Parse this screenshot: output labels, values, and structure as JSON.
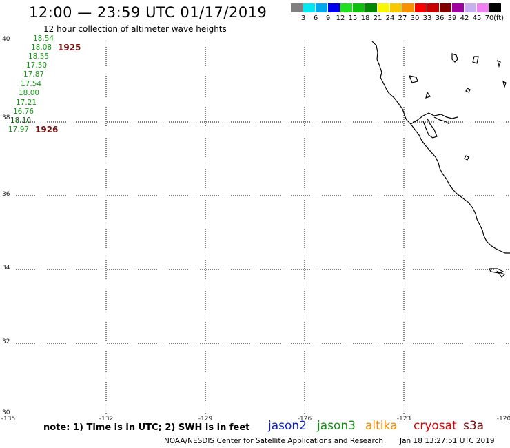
{
  "header": {
    "title": "12:00 — 23:59 UTC 01/17/2019",
    "subtitle": "12 hour collection of altimeter wave heights"
  },
  "scale": {
    "colors": [
      "#808080",
      "#00e8f0",
      "#00a8f0",
      "#0000f0",
      "#20e020",
      "#10c010",
      "#008800",
      "#f8f800",
      "#f8c800",
      "#f89000",
      "#f80000",
      "#c80000",
      "#800000",
      "#a000a0",
      "#c8b0f0",
      "#f080f0",
      "#000000"
    ],
    "labels": [
      "3",
      "6",
      "9",
      "12",
      "15",
      "18",
      "21",
      "24",
      "27",
      "30",
      "33",
      "36",
      "39",
      "42",
      "45",
      "70"
    ],
    "unit": "(ft)"
  },
  "axes": {
    "lat_labels": [
      "40",
      "38",
      "36",
      "34",
      "32",
      "30"
    ],
    "lon_labels": [
      "-135",
      "-132",
      "-129",
      "-126",
      "-123",
      "-120"
    ]
  },
  "wave_heights": [
    "18.54",
    "18.08",
    "18.55",
    "17.50",
    "17.87",
    "17.54",
    "18.00",
    "17.21",
    "16.76",
    "18.10",
    "17.97"
  ],
  "passes": [
    "1925",
    "1926"
  ],
  "note": "note: 1) Time is in UTC; 2) SWH is in feet",
  "legend": {
    "items": [
      {
        "label": "jason2",
        "color": "#0a1fc8"
      },
      {
        "label": "jason3",
        "color": "#0f8f0f"
      },
      {
        "label": "altika",
        "color": "#f08c00"
      },
      {
        "label": "cryosat",
        "color": "#e00000"
      },
      {
        "label": "s3a",
        "color": "#7a0f0f"
      }
    ]
  },
  "footer": {
    "credit": "NOAA/NESDIS Center for Satellite Applications and Research",
    "timestamp": "Jan 18 13:27:51 UTC 2019"
  }
}
